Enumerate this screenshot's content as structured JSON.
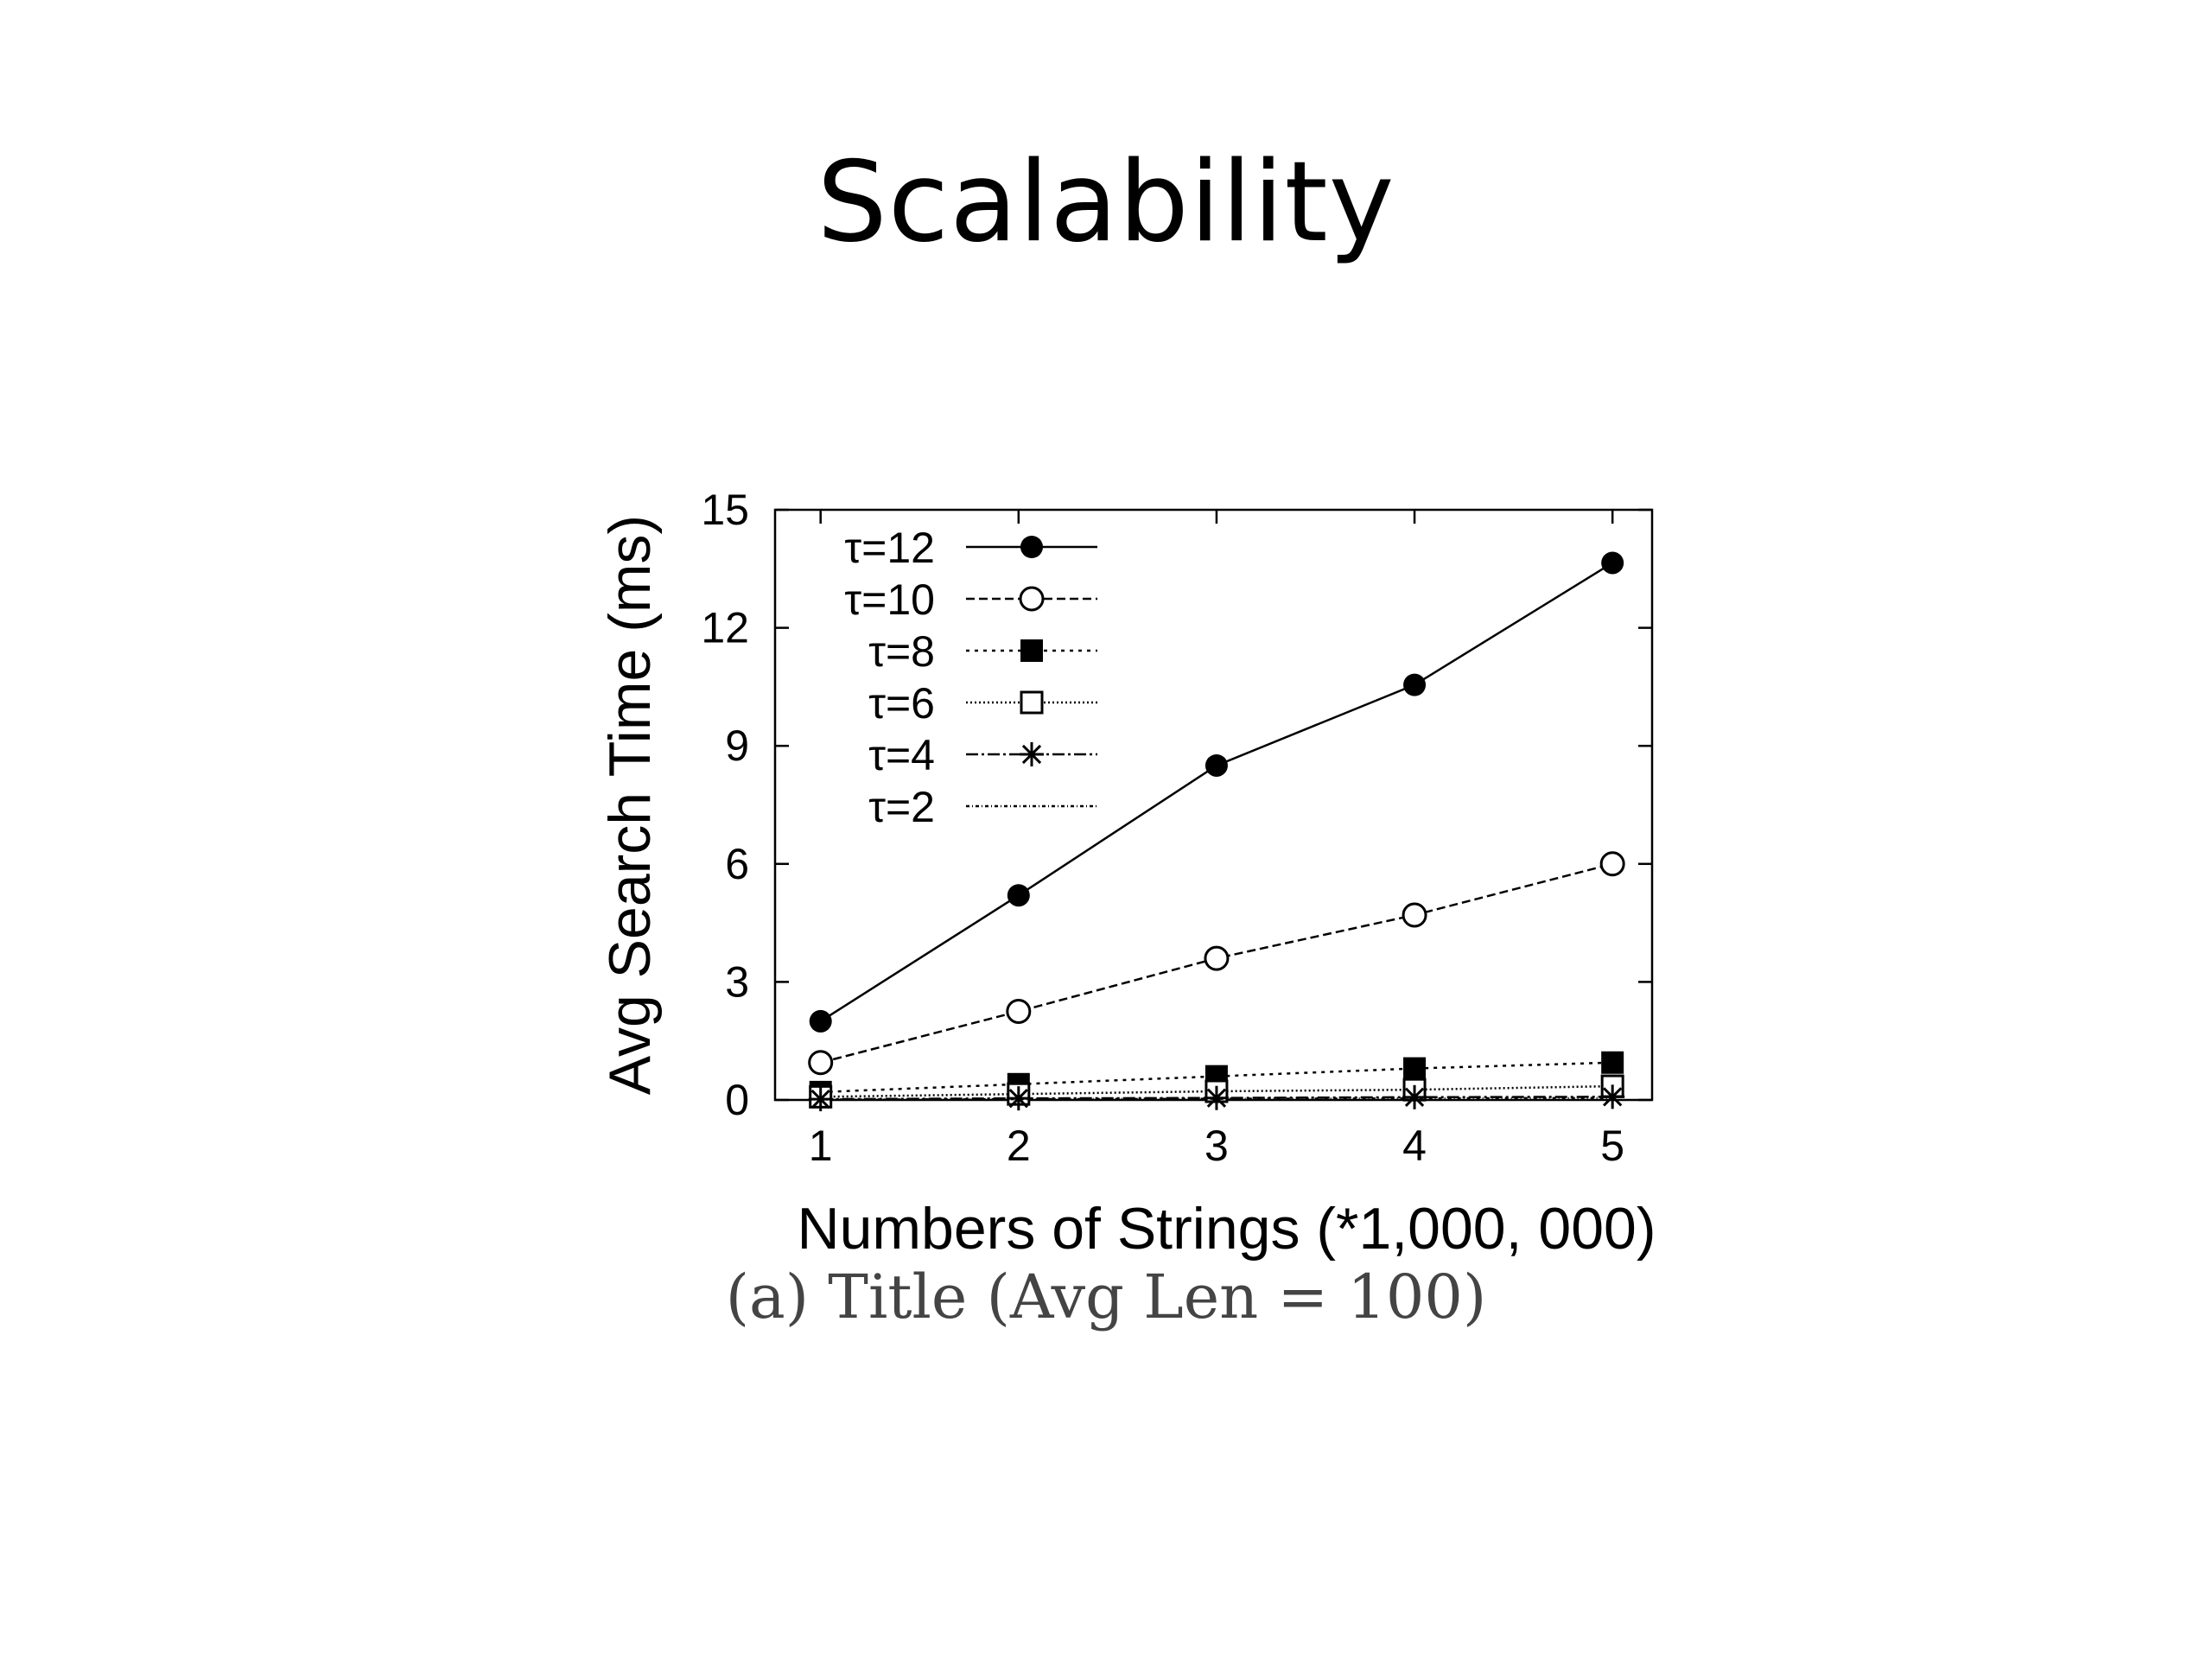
{
  "slide": {
    "title": "Scalability",
    "caption": "(a) Title (Avg Len = 100)"
  },
  "chart_data": {
    "type": "line",
    "xlabel": "Numbers of Strings (*1,000, 000)",
    "ylabel": "Avg Search Time (ms)",
    "x": [
      1,
      2,
      3,
      4,
      5
    ],
    "xticks": [
      "1",
      "2",
      "3",
      "4",
      "5"
    ],
    "yticks": [
      "0",
      "3",
      "6",
      "9",
      "12",
      "15"
    ],
    "xlim": [
      0.77,
      5.2
    ],
    "ylim": [
      0,
      15
    ],
    "legend_position": "top-left",
    "grid": false,
    "series": [
      {
        "name": "τ=12",
        "marker": "filled-circle",
        "dash": "",
        "values": [
          2.0,
          5.2,
          8.5,
          10.55,
          13.65
        ]
      },
      {
        "name": "τ=10",
        "marker": "open-circle",
        "dash": "10,5",
        "values": [
          0.95,
          2.25,
          3.6,
          4.7,
          6.0
        ]
      },
      {
        "name": "τ=8",
        "marker": "filled-square",
        "dash": "4,6",
        "values": [
          0.2,
          0.4,
          0.6,
          0.8,
          0.95
        ]
      },
      {
        "name": "τ=6",
        "marker": "open-square",
        "dash": "2,3",
        "values": [
          0.08,
          0.15,
          0.22,
          0.26,
          0.35
        ]
      },
      {
        "name": "τ=4",
        "marker": "star",
        "dash": "14,4,3,4",
        "values": [
          0.02,
          0.04,
          0.05,
          0.07,
          0.08
        ]
      },
      {
        "name": "τ=2",
        "marker": "none",
        "dash": "4,3,1,3",
        "values": [
          0.01,
          0.02,
          0.03,
          0.04,
          0.05
        ]
      }
    ]
  }
}
